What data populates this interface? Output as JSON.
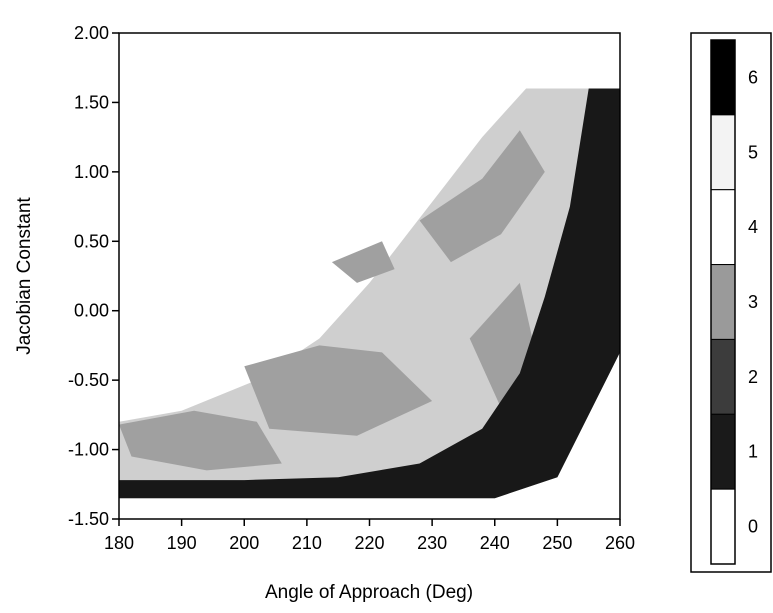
{
  "chart_data": {
    "type": "heatmap",
    "title": "",
    "xlabel": "Angle of Approach (Deg)",
    "ylabel": "Jacobian Constant",
    "xlim": [
      180,
      260
    ],
    "ylim": [
      -1.5,
      2.0
    ],
    "x_ticks": [
      180,
      190,
      200,
      210,
      220,
      230,
      240,
      250,
      260
    ],
    "x_tick_labels": [
      "180",
      "190",
      "200",
      "210",
      "220",
      "230",
      "240",
      "250",
      "260"
    ],
    "y_ticks": [
      2.0,
      1.5,
      1.0,
      0.5,
      0.0,
      -0.5,
      -1.0,
      -1.5
    ],
    "y_tick_labels": [
      "2.00",
      "1.50",
      "1.00",
      "0.50",
      "0.00",
      "-0.50",
      "-1.00",
      "-1.50"
    ],
    "grid": false,
    "legend_position": "right",
    "colorbar": {
      "levels": [
        0,
        1,
        2,
        3,
        4,
        5,
        6
      ],
      "labels": [
        "0",
        "1",
        "2",
        "3",
        "4",
        "5",
        "6"
      ],
      "band_colors": [
        "#ffffff",
        "#1a1a1a",
        "#3c3c3c",
        "#9a9a9a",
        "#ffffff",
        "#f3f3f3",
        "#000000"
      ]
    },
    "data_region": {
      "outer_boundary": [
        [
          180,
          -1.35
        ],
        [
          240,
          -1.35
        ],
        [
          250,
          -1.2
        ],
        [
          260,
          -0.3
        ],
        [
          260,
          1.6
        ],
        [
          245,
          1.6
        ],
        [
          238,
          1.25
        ],
        [
          232,
          0.9
        ],
        [
          226,
          0.55
        ],
        [
          220,
          0.2
        ],
        [
          212,
          -0.2
        ],
        [
          202,
          -0.5
        ],
        [
          190,
          -0.72
        ],
        [
          180,
          -0.8
        ]
      ],
      "dark_band": [
        [
          180,
          -1.35
        ],
        [
          240,
          -1.35
        ],
        [
          250,
          -1.2
        ],
        [
          260,
          -0.3
        ],
        [
          260,
          1.6
        ],
        [
          255,
          1.6
        ],
        [
          252,
          0.75
        ],
        [
          248,
          0.1
        ],
        [
          244,
          -0.45
        ],
        [
          238,
          -0.85
        ],
        [
          228,
          -1.1
        ],
        [
          215,
          -1.2
        ],
        [
          200,
          -1.22
        ],
        [
          180,
          -1.22
        ]
      ],
      "gray_patches": [
        [
          [
            228,
            0.65
          ],
          [
            238,
            0.95
          ],
          [
            244,
            1.3
          ],
          [
            248,
            1.0
          ],
          [
            241,
            0.55
          ],
          [
            233,
            0.35
          ]
        ],
        [
          [
            200,
            -0.4
          ],
          [
            212,
            -0.25
          ],
          [
            222,
            -0.3
          ],
          [
            230,
            -0.65
          ],
          [
            218,
            -0.9
          ],
          [
            204,
            -0.85
          ]
        ],
        [
          [
            180,
            -0.82
          ],
          [
            192,
            -0.72
          ],
          [
            202,
            -0.8
          ],
          [
            206,
            -1.1
          ],
          [
            194,
            -1.15
          ],
          [
            182,
            -1.05
          ]
        ],
        [
          [
            236,
            -0.2
          ],
          [
            244,
            0.2
          ],
          [
            247,
            -0.4
          ],
          [
            241,
            -0.7
          ]
        ],
        [
          [
            214,
            0.35
          ],
          [
            222,
            0.5
          ],
          [
            224,
            0.3
          ],
          [
            218,
            0.2
          ]
        ]
      ]
    }
  },
  "colors": {
    "axis": "#000000",
    "dark_region": "#181818",
    "mid_gray": "#a0a0a0",
    "light_gray": "#cfcfcf",
    "background": "#ffffff"
  }
}
